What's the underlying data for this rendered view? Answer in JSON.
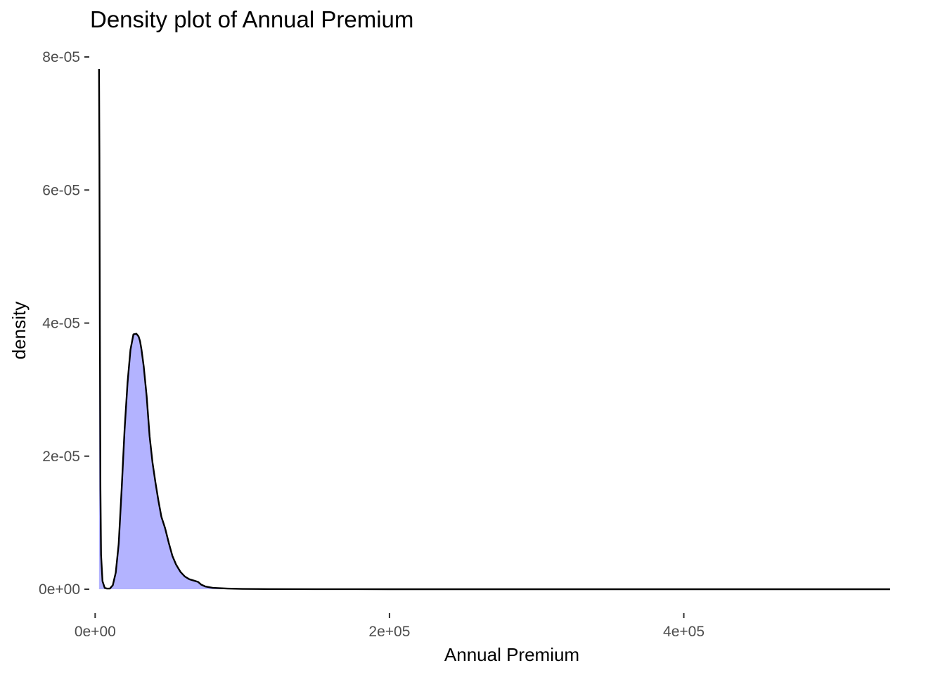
{
  "chart_data": {
    "type": "area",
    "title": "Density plot of Annual Premium",
    "xlabel": "Annual Premium",
    "ylabel": "density",
    "xlim": [
      -3500,
      545000
    ],
    "ylim": [
      0,
      8e-05
    ],
    "grid": false,
    "legend": "none",
    "x_ticks": [
      {
        "value": 0,
        "label": "0e+00"
      },
      {
        "value": 200000,
        "label": "2e+05"
      },
      {
        "value": 400000,
        "label": "4e+05"
      }
    ],
    "y_ticks": [
      {
        "value": 0,
        "label": "0e+00"
      },
      {
        "value": 2e-05,
        "label": "2e-05"
      },
      {
        "value": 4e-05,
        "label": "4e-05"
      },
      {
        "value": 6e-05,
        "label": "6e-05"
      },
      {
        "value": 8e-05,
        "label": "8e-05"
      }
    ],
    "series": [
      {
        "fill_color": "#b3b3ff",
        "line_color": "#000000",
        "x": [
          2630,
          2900,
          3200,
          3600,
          4000,
          5000,
          6500,
          8000,
          10000,
          12000,
          14000,
          16000,
          18000,
          20000,
          22000,
          24000,
          26000,
          28000,
          29500,
          30500,
          31500,
          33000,
          35000,
          37000,
          39000,
          41000,
          43000,
          45000,
          47500,
          50000,
          52500,
          55000,
          58000,
          61000,
          64000,
          67000,
          70000,
          72000,
          75000,
          80000,
          90000,
          100000,
          110000,
          120000,
          150000,
          200000,
          300000,
          400000,
          500000,
          540165
        ],
        "y": [
          7.82e-05,
          6.5e-05,
          4e-05,
          1.5e-05,
          5.2e-06,
          1.2e-06,
          2e-07,
          1e-07,
          1e-07,
          6e-07,
          2.5e-06,
          6.8e-06,
          1.5e-05,
          2.4e-05,
          3.1e-05,
          3.6e-05,
          3.83e-05,
          3.84e-05,
          3.8e-05,
          3.73e-05,
          3.6e-05,
          3.35e-05,
          2.9e-05,
          2.3e-05,
          1.9e-05,
          1.6e-05,
          1.33e-05,
          1.09e-05,
          9.2e-06,
          7e-06,
          5e-06,
          3.7e-06,
          2.6e-06,
          1.9e-06,
          1.5e-06,
          1.3e-06,
          1.1e-06,
          7e-07,
          4e-07,
          2e-07,
          1e-07,
          5e-08,
          3e-08,
          2e-08,
          1e-08,
          0,
          0,
          0,
          0,
          0
        ]
      }
    ]
  }
}
